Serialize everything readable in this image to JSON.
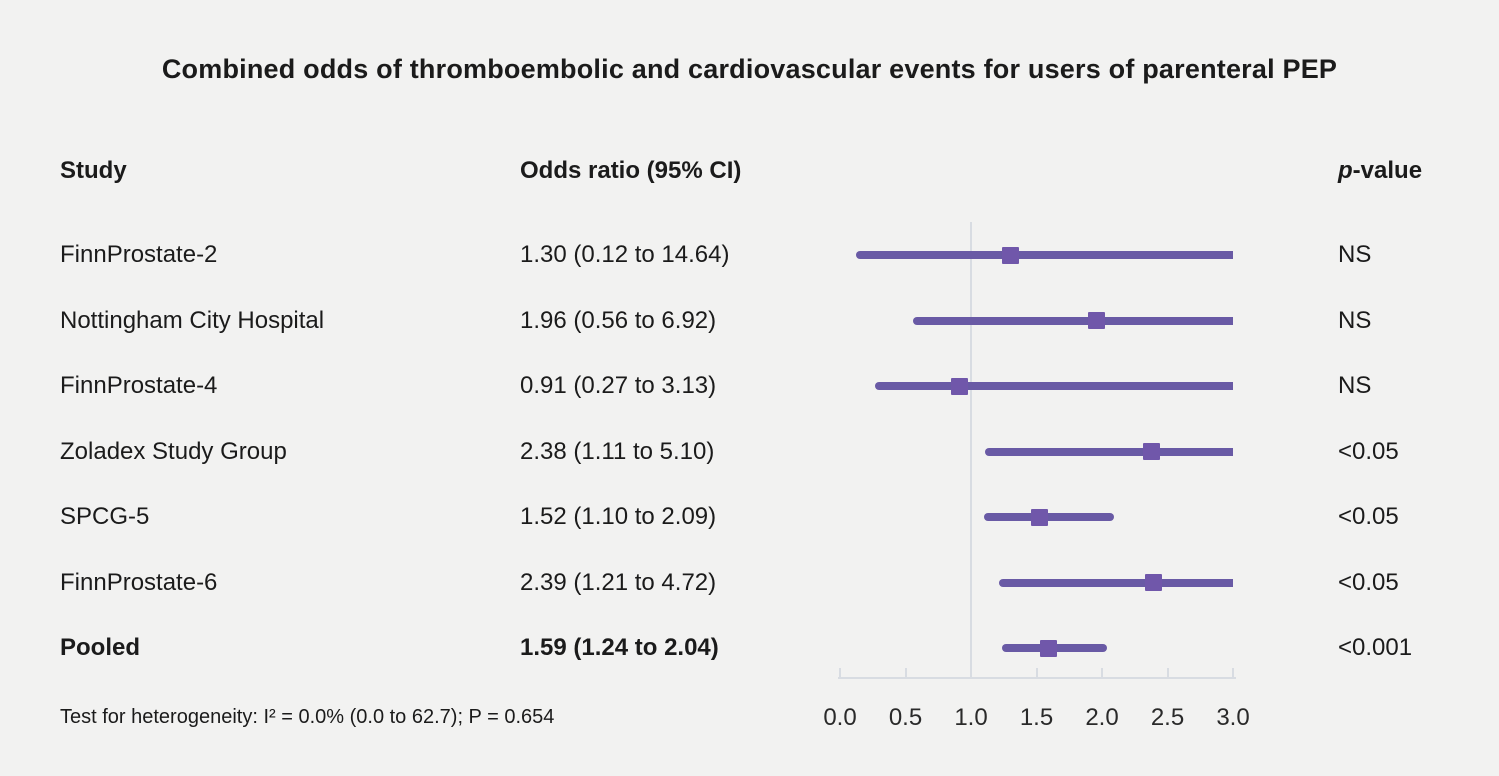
{
  "title": "Combined odds of thromboembolic and cardiovascular events for users of parenteral PEP",
  "columns": {
    "study": "Study",
    "odds_ratio": "Odds ratio (95% CI)",
    "p_value_italic": "p",
    "p_value_rest": "-value"
  },
  "footnote": "Test for heterogeneity: I² = 0.0% (0.0 to 62.7); P = 0.654",
  "colors": {
    "background": "#F2F2F1",
    "text": "#1B1B1B",
    "ci_line": "#695AA5",
    "marker": "#7057AA",
    "axis_line": "#D8DCE2"
  },
  "chart_data": {
    "type": "scatter",
    "variant": "forest-plot",
    "title": "Combined odds of thromboembolic and cardiovascular events for users of parenteral PEP",
    "xlabel": "",
    "ylabel": "",
    "x_axis": {
      "ticks": [
        0,
        0.5,
        1,
        1.5,
        2,
        2.5,
        3
      ],
      "tick_labels": [
        "0.0",
        "0.5",
        "1.0",
        "1.5",
        "2.0",
        "2.5",
        "3.0"
      ],
      "range": [
        0,
        3
      ],
      "reference_line": 1.0,
      "clip_max": 3.0,
      "grid": false
    },
    "series": [
      {
        "study": "FinnProstate-2",
        "estimate": 1.3,
        "ci_low": 0.12,
        "ci_high": 14.64,
        "or_text": "1.30 (0.12 to 14.64)",
        "p_value": "NS",
        "pooled": false
      },
      {
        "study": "Nottingham City Hospital",
        "estimate": 1.96,
        "ci_low": 0.56,
        "ci_high": 6.92,
        "or_text": "1.96 (0.56 to 6.92)",
        "p_value": "NS",
        "pooled": false
      },
      {
        "study": "FinnProstate-4",
        "estimate": 0.91,
        "ci_low": 0.27,
        "ci_high": 3.13,
        "or_text": "0.91 (0.27 to 3.13)",
        "p_value": "NS",
        "pooled": false
      },
      {
        "study": "Zoladex Study Group",
        "estimate": 2.38,
        "ci_low": 1.11,
        "ci_high": 5.1,
        "or_text": "2.38 (1.11 to 5.10)",
        "p_value": "<0.05",
        "pooled": false
      },
      {
        "study": "SPCG-5",
        "estimate": 1.52,
        "ci_low": 1.1,
        "ci_high": 2.09,
        "or_text": "1.52 (1.10 to 2.09)",
        "p_value": "<0.05",
        "pooled": false
      },
      {
        "study": "FinnProstate-6",
        "estimate": 2.39,
        "ci_low": 1.21,
        "ci_high": 4.72,
        "or_text": "2.39 (1.21 to 4.72)",
        "p_value": "<0.05",
        "pooled": false
      },
      {
        "study": "Pooled",
        "estimate": 1.59,
        "ci_low": 1.24,
        "ci_high": 2.04,
        "or_text": "1.59 (1.24 to 2.04)",
        "p_value": "<0.001",
        "pooled": true
      }
    ]
  }
}
